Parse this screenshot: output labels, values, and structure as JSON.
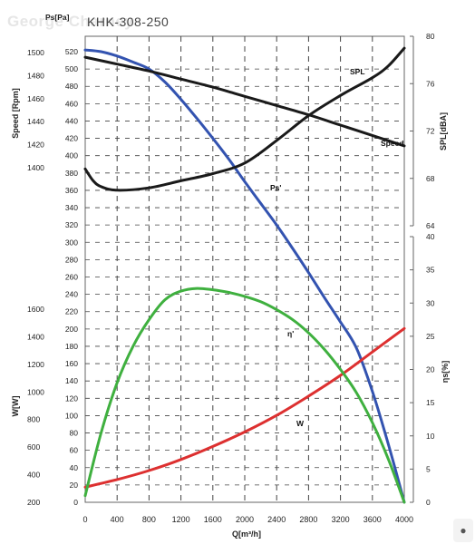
{
  "watermark": "George Charney",
  "model": "KHK-308-250",
  "badge_icon": "badge-icon",
  "chart_data": {
    "type": "line",
    "title": "KHK-308-250",
    "xlabel": "Q[m³/h]",
    "xlim": [
      0,
      4000
    ],
    "x_ticks": [
      "0",
      "400",
      "800",
      "1200",
      "1600",
      "2000",
      "2400",
      "2800",
      "3200",
      "3600",
      "4000"
    ],
    "grid": true,
    "axes": {
      "ps": {
        "label": "Ps[Pa]",
        "range": [
          0,
          520
        ],
        "ticks": [
          "0",
          "20",
          "40",
          "60",
          "80",
          "100",
          "120",
          "140",
          "160",
          "180",
          "200",
          "220",
          "240",
          "260",
          "280",
          "300",
          "320",
          "340",
          "360",
          "380",
          "400",
          "420",
          "440",
          "460",
          "480",
          "500",
          "520"
        ]
      },
      "speed": {
        "label": "Speed [Rpm]",
        "range": [
          1380,
          1520
        ],
        "ticks": [
          "1400",
          "1420",
          "1440",
          "1460",
          "1480",
          "1500"
        ]
      },
      "power": {
        "label": "W[W]",
        "range": [
          200,
          1800
        ],
        "ticks": [
          "200",
          "400",
          "600",
          "800",
          "1000",
          "1200",
          "1400",
          "1600"
        ]
      },
      "spl": {
        "label": "SPL[dBA]",
        "range": [
          64,
          80
        ],
        "ticks": [
          "64",
          "68",
          "72",
          "76",
          "80"
        ]
      },
      "eff": {
        "label": "ηs[%]",
        "range": [
          0,
          40
        ],
        "ticks": [
          "0",
          "5",
          "10",
          "15",
          "20",
          "25",
          "30",
          "35",
          "40"
        ]
      }
    },
    "series": [
      {
        "name": "Ps",
        "axis": "ps",
        "color": "#3353b0",
        "x": [
          0,
          200,
          400,
          600,
          800,
          1000,
          1200,
          1400,
          1600,
          1800,
          2000,
          2200,
          2400,
          2600,
          2800,
          3000,
          3200,
          3400,
          3600,
          3800,
          4000
        ],
        "y": [
          522,
          520,
          515,
          508,
          500,
          485,
          465,
          443,
          420,
          396,
          370,
          345,
          320,
          293,
          265,
          236,
          208,
          178,
          128,
          67,
          0
        ]
      },
      {
        "name": "Speed",
        "axis": "speed",
        "color": "#1a1a1a",
        "x": [
          0,
          400,
          800,
          1200,
          1600,
          2000,
          2400,
          2800,
          3200,
          3600,
          4000
        ],
        "y": [
          1496,
          1490,
          1484,
          1477,
          1470,
          1462,
          1454,
          1446,
          1437,
          1428,
          1419
        ]
      },
      {
        "name": "SPL",
        "axis": "spl",
        "color": "#1a1a1a",
        "x": [
          0,
          100,
          200,
          400,
          800,
          1200,
          1600,
          2000,
          2400,
          2800,
          3200,
          3600,
          3800,
          4000
        ],
        "y": [
          68.8,
          67.8,
          67.3,
          67.0,
          67.2,
          67.8,
          68.4,
          69.3,
          71.2,
          73.3,
          75.0,
          76.5,
          77.5,
          79.0
        ]
      },
      {
        "name": "W",
        "axis": "power",
        "color": "#dd3030",
        "x": [
          0,
          400,
          800,
          1200,
          1600,
          2000,
          2400,
          2800,
          3200,
          3600,
          4000
        ],
        "y": [
          310,
          365,
          430,
          510,
          605,
          710,
          830,
          970,
          1120,
          1290,
          1460
        ]
      },
      {
        "name": "ηs",
        "axis": "eff",
        "color": "#3fb03f",
        "x": [
          0,
          200,
          400,
          600,
          800,
          1000,
          1200,
          1400,
          1600,
          1800,
          2000,
          2200,
          2400,
          2600,
          2800,
          3000,
          3200,
          3400,
          3600,
          3800,
          4000
        ],
        "y": [
          1.0,
          10.5,
          18.0,
          23.5,
          27.5,
          30.5,
          31.8,
          32.2,
          32.0,
          31.6,
          31.0,
          30.2,
          29.0,
          27.5,
          25.5,
          23.0,
          20.0,
          16.5,
          12.0,
          6.5,
          0
        ]
      }
    ],
    "annotations": [
      {
        "text": "SPL",
        "series": "SPL"
      },
      {
        "text": "Speed",
        "series": "Speed"
      },
      {
        "text": "Ps'",
        "series": "Ps"
      },
      {
        "text": "η'",
        "series": "ηs"
      },
      {
        "text": "W",
        "series": "W"
      }
    ]
  }
}
